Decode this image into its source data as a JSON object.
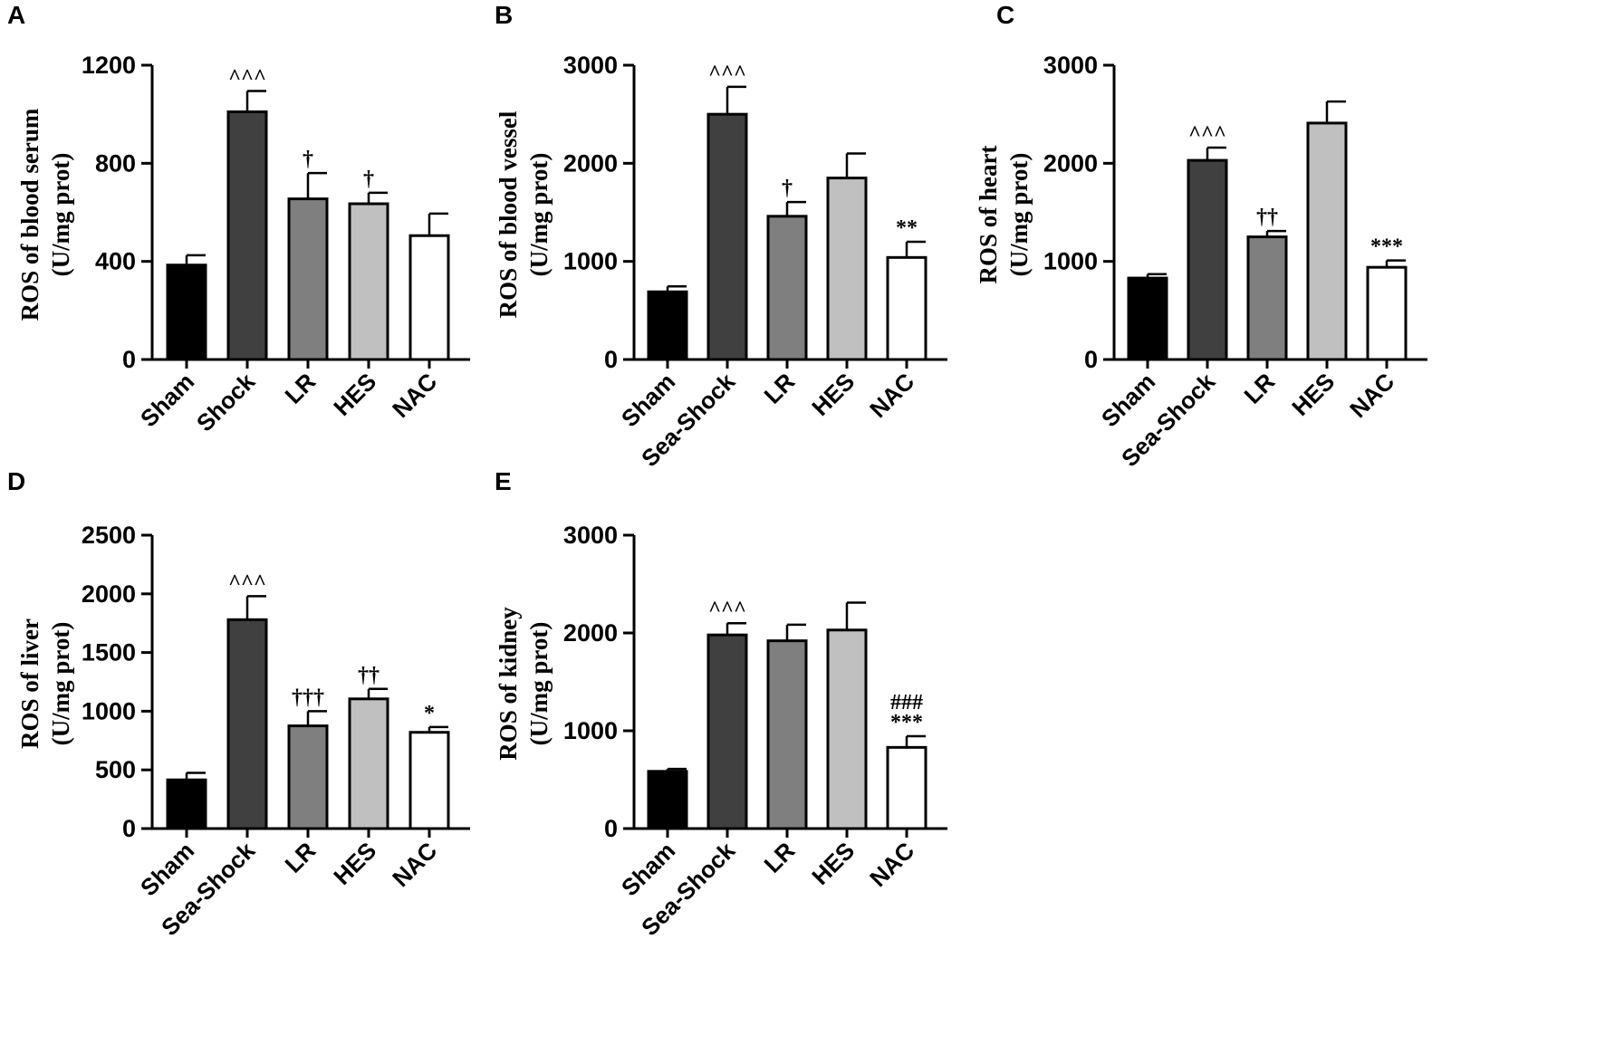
{
  "chart_data": [
    {
      "type": "bar",
      "panel": "A",
      "ylabel": [
        "ROS of blood serum",
        "(U/mg prot)"
      ],
      "ylim": [
        0,
        1200
      ],
      "yticks": [
        0,
        400,
        800,
        1200
      ],
      "categories": [
        "Sham",
        "Shock",
        "LR",
        "HES",
        "NAC"
      ],
      "values": [
        385,
        1010,
        655,
        635,
        505
      ],
      "errors": [
        40,
        85,
        105,
        45,
        90
      ],
      "annotations": [
        [],
        [
          "^^^"
        ],
        [
          "†"
        ],
        [
          "†"
        ],
        []
      ],
      "colors": [
        "#000000",
        "#404040",
        "#7f7f7f",
        "#c0c0c0",
        "#ffffff"
      ]
    },
    {
      "type": "bar",
      "panel": "B",
      "ylabel": [
        "ROS of blood vessel",
        "(U/mg prot)"
      ],
      "ylim": [
        0,
        3000
      ],
      "yticks": [
        0,
        1000,
        2000,
        3000
      ],
      "categories": [
        "Sham",
        "Sea-Shock",
        "LR",
        "HES",
        "NAC"
      ],
      "values": [
        690,
        2500,
        1460,
        1850,
        1040
      ],
      "errors": [
        55,
        280,
        145,
        250,
        160
      ],
      "annotations": [
        [],
        [
          "^^^"
        ],
        [
          "†"
        ],
        [],
        [
          "**"
        ]
      ],
      "colors": [
        "#000000",
        "#404040",
        "#7f7f7f",
        "#c0c0c0",
        "#ffffff"
      ]
    },
    {
      "type": "bar",
      "panel": "C",
      "ylabel": [
        "ROS of heart",
        "(U/mg prot)"
      ],
      "ylim": [
        0,
        3000
      ],
      "yticks": [
        0,
        1000,
        2000,
        3000
      ],
      "categories": [
        "Sham",
        "Sea-Shock",
        "LR",
        "HES",
        "NAC"
      ],
      "values": [
        830,
        2030,
        1250,
        2410,
        940
      ],
      "errors": [
        40,
        130,
        60,
        220,
        70
      ],
      "annotations": [
        [],
        [
          "^^^"
        ],
        [
          "††"
        ],
        [],
        [
          "***"
        ]
      ],
      "colors": [
        "#000000",
        "#404040",
        "#7f7f7f",
        "#c0c0c0",
        "#ffffff"
      ]
    },
    {
      "type": "bar",
      "panel": "D",
      "ylabel": [
        "ROS of liver",
        "(U/mg prot)"
      ],
      "ylim": [
        0,
        2500
      ],
      "yticks": [
        0,
        500,
        1000,
        1500,
        2000,
        2500
      ],
      "categories": [
        "Sham",
        "Sea-Shock",
        "LR",
        "HES",
        "NAC"
      ],
      "values": [
        415,
        1780,
        875,
        1105,
        820
      ],
      "errors": [
        60,
        200,
        125,
        85,
        45
      ],
      "annotations": [
        [],
        [
          "^^^"
        ],
        [
          "†††"
        ],
        [
          "††"
        ],
        [
          "*"
        ]
      ],
      "colors": [
        "#000000",
        "#404040",
        "#7f7f7f",
        "#c0c0c0",
        "#ffffff"
      ]
    },
    {
      "type": "bar",
      "panel": "E",
      "ylabel": [
        "ROS of kidney",
        "(U/mg prot)"
      ],
      "ylim": [
        0,
        3000
      ],
      "yticks": [
        0,
        1000,
        2000,
        3000
      ],
      "categories": [
        "Sham",
        "Sea-Shock",
        "LR",
        "HES",
        "NAC"
      ],
      "values": [
        585,
        1980,
        1920,
        2030,
        830
      ],
      "errors": [
        25,
        120,
        165,
        280,
        115
      ],
      "annotations": [
        [],
        [
          "^^^"
        ],
        [],
        [],
        [
          "###",
          "***"
        ]
      ],
      "colors": [
        "#000000",
        "#404040",
        "#7f7f7f",
        "#c0c0c0",
        "#ffffff"
      ]
    }
  ]
}
